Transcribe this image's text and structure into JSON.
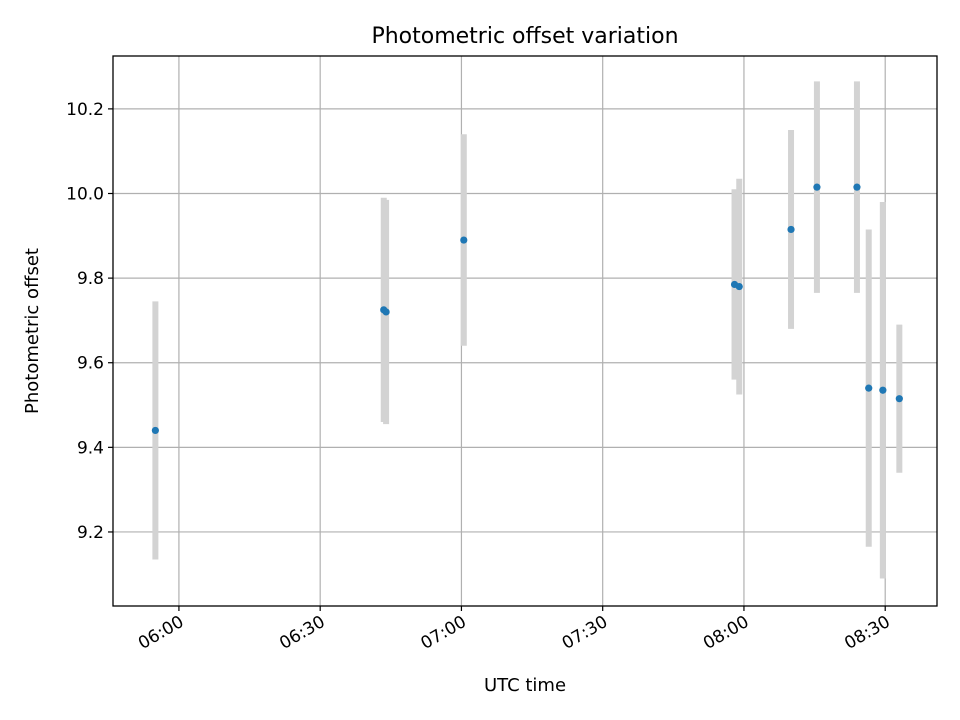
{
  "chart_data": {
    "type": "scatter",
    "title": "Photometric offset variation",
    "xlabel": "UTC time",
    "ylabel": "Photometric offset",
    "xlim": [
      "05:46:00",
      "08:41:00"
    ],
    "ylim": [
      9.025,
      10.325
    ],
    "x_ticks": [
      "06:00",
      "06:30",
      "07:00",
      "07:30",
      "08:00",
      "08:30"
    ],
    "y_ticks": [
      "9.2",
      "9.4",
      "9.6",
      "9.8",
      "10.0",
      "10.2"
    ],
    "grid": true,
    "series": [
      {
        "points": [
          {
            "x": "05:55:00",
            "y": 9.44,
            "err": 0.305
          },
          {
            "x": "06:43:30",
            "y": 9.725,
            "err": 0.265
          },
          {
            "x": "06:44:00",
            "y": 9.72,
            "err": 0.265
          },
          {
            "x": "07:00:30",
            "y": 9.89,
            "err": 0.25
          },
          {
            "x": "07:58:00",
            "y": 9.785,
            "err": 0.225
          },
          {
            "x": "07:59:00",
            "y": 9.78,
            "err": 0.255
          },
          {
            "x": "08:10:00",
            "y": 9.915,
            "err": 0.235
          },
          {
            "x": "08:15:30",
            "y": 10.015,
            "err": 0.25
          },
          {
            "x": "08:24:00",
            "y": 10.015,
            "err": 0.25
          },
          {
            "x": "08:26:30",
            "y": 9.54,
            "err": 0.375
          },
          {
            "x": "08:29:30",
            "y": 9.535,
            "err": 0.445
          },
          {
            "x": "08:33:00",
            "y": 9.515,
            "err": 0.175
          }
        ]
      }
    ],
    "marker_color": "#1f77b4",
    "errorbar_color": "#d3d3d3"
  }
}
